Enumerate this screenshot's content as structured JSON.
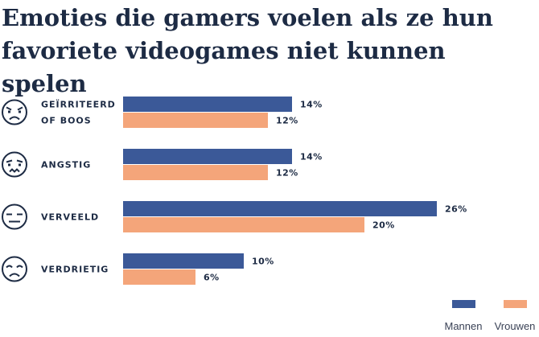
{
  "chart_data": {
    "type": "bar",
    "orientation": "horizontal",
    "title": "Emoties die gamers voelen als ze hun favoriete videogames niet kunnen spelen",
    "categories": [
      {
        "lines": [
          "GEÏRRITEERD",
          "OF BOOS"
        ],
        "icon": "angry-face-icon"
      },
      {
        "lines": [
          "ANGSTIG"
        ],
        "icon": "anxious-face-icon"
      },
      {
        "lines": [
          "VERVEELD"
        ],
        "icon": "bored-face-icon"
      },
      {
        "lines": [
          "VERDRIETIG"
        ],
        "icon": "sad-face-icon"
      }
    ],
    "series": [
      {
        "name": "Mannen",
        "color": "#3b5998",
        "values": [
          14,
          14,
          26,
          10
        ],
        "labels": [
          "14%",
          "14%",
          "26%",
          "10%"
        ]
      },
      {
        "name": "Vrouwen",
        "color": "#f4a57a",
        "values": [
          12,
          12,
          20,
          6
        ],
        "labels": [
          "12%",
          "12%",
          "20%",
          "6%"
        ]
      }
    ],
    "value_unit": "%",
    "xlim": [
      0,
      30
    ],
    "grid": false,
    "legend_position": "bottom-right"
  }
}
